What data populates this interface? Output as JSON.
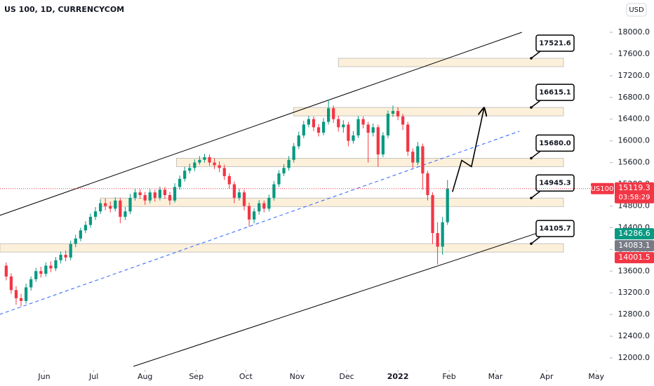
{
  "chart_data": {
    "type": "candlestick",
    "title": "US 100, 1D, CURRENCYCOM",
    "currency": "USD",
    "symbol": "US100",
    "countdown": "03:58:29",
    "up_color": "#089981",
    "down_color": "#f23645",
    "xlim": [
      -26.75,
      340.5
    ],
    "xticks": [
      {
        "value": 0,
        "label": "Jun"
      },
      {
        "value": 30,
        "label": "Jul"
      },
      {
        "value": 61,
        "label": "Aug"
      },
      {
        "value": 92,
        "label": "Sep"
      },
      {
        "value": 122,
        "label": "Oct"
      },
      {
        "value": 153,
        "label": "Nov"
      },
      {
        "value": 183,
        "label": "Dec"
      },
      {
        "value": 214,
        "label": "2022"
      },
      {
        "value": 245,
        "label": "Feb"
      },
      {
        "value": 273,
        "label": "Mar"
      },
      {
        "value": 304,
        "label": "Apr"
      },
      {
        "value": 334,
        "label": "May"
      }
    ],
    "ylim": [
      11806,
      18595
    ],
    "yticks": [
      {
        "value": 12000,
        "label": "12000.0"
      },
      {
        "value": 12400,
        "label": "12400.0"
      },
      {
        "value": 12800,
        "label": "12800.0"
      },
      {
        "value": 13200,
        "label": "13200.0"
      },
      {
        "value": 13600,
        "label": "13600.0"
      },
      {
        "value": 14000,
        "label": "14000.0"
      },
      {
        "value": 14400,
        "label": "14400.0"
      },
      {
        "value": 14800,
        "label": "14800.0"
      },
      {
        "value": 15200,
        "label": "15200.0"
      },
      {
        "value": 15600,
        "label": "15600.0"
      },
      {
        "value": 16000,
        "label": "16000.0"
      },
      {
        "value": 16400,
        "label": "16400.0"
      },
      {
        "value": 16800,
        "label": "16800.0"
      },
      {
        "value": 17200,
        "label": "17200.0"
      },
      {
        "value": 17600,
        "label": "17600.0"
      },
      {
        "value": 18000,
        "label": "18000.0"
      }
    ],
    "x": [
      -23,
      -20,
      -17,
      -14,
      -11,
      -8,
      -5,
      -2,
      1,
      4,
      7,
      10,
      13,
      16,
      19,
      22,
      25,
      28,
      31,
      34,
      37,
      40,
      43,
      46,
      49,
      52,
      55,
      58,
      61,
      64,
      67,
      70,
      73,
      76,
      79,
      82,
      85,
      88,
      91,
      94,
      97,
      100,
      103,
      106,
      109,
      112,
      115,
      118,
      121,
      124,
      127,
      130,
      133,
      136,
      139,
      142,
      145,
      148,
      151,
      154,
      157,
      160,
      163,
      166,
      169,
      172,
      175,
      178,
      181,
      184,
      187,
      190,
      193,
      196,
      199,
      202,
      205,
      208,
      211,
      214,
      217,
      220,
      223,
      226,
      229,
      232,
      235,
      238,
      241,
      244
    ],
    "candles": [
      [
        13700,
        13760,
        13430,
        13500
      ],
      [
        13500,
        13560,
        13180,
        13250
      ],
      [
        13250,
        13320,
        12980,
        13100
      ],
      [
        13100,
        13180,
        12950,
        13050
      ],
      [
        13050,
        13370,
        13000,
        13300
      ],
      [
        13300,
        13500,
        13240,
        13450
      ],
      [
        13450,
        13660,
        13400,
        13600
      ],
      [
        13600,
        13680,
        13480,
        13550
      ],
      [
        13550,
        13760,
        13500,
        13700
      ],
      [
        13700,
        13780,
        13580,
        13650
      ],
      [
        13650,
        13860,
        13600,
        13800
      ],
      [
        13800,
        13960,
        13740,
        13900
      ],
      [
        13900,
        13980,
        13780,
        13850
      ],
      [
        13850,
        14160,
        13800,
        14100
      ],
      [
        14100,
        14270,
        14040,
        14200
      ],
      [
        14200,
        14400,
        14150,
        14350
      ],
      [
        14350,
        14520,
        14300,
        14450
      ],
      [
        14450,
        14660,
        14400,
        14600
      ],
      [
        14600,
        14780,
        14540,
        14700
      ],
      [
        14700,
        14920,
        14650,
        14850
      ],
      [
        14850,
        14940,
        14720,
        14800
      ],
      [
        14800,
        14880,
        14680,
        14750
      ],
      [
        14750,
        14960,
        14700,
        14900
      ],
      [
        14900,
        14950,
        14480,
        14600
      ],
      [
        14600,
        14780,
        14540,
        14700
      ],
      [
        14700,
        15020,
        14650,
        14950
      ],
      [
        14950,
        15120,
        14900,
        15050
      ],
      [
        15050,
        15110,
        14930,
        15000
      ],
      [
        15000,
        15060,
        14820,
        14900
      ],
      [
        14900,
        15110,
        14850,
        15050
      ],
      [
        15050,
        15100,
        14880,
        14950
      ],
      [
        14950,
        15160,
        14900,
        15100
      ],
      [
        15100,
        15150,
        14930,
        15000
      ],
      [
        15000,
        15060,
        14820,
        14900
      ],
      [
        14900,
        15220,
        14860,
        15150
      ],
      [
        15150,
        15360,
        15100,
        15300
      ],
      [
        15300,
        15520,
        15250,
        15450
      ],
      [
        15450,
        15580,
        15400,
        15500
      ],
      [
        15500,
        15660,
        15440,
        15600
      ],
      [
        15600,
        15720,
        15560,
        15650
      ],
      [
        15650,
        15760,
        15600,
        15700
      ],
      [
        15700,
        15750,
        15540,
        15600
      ],
      [
        15600,
        15680,
        15480,
        15550
      ],
      [
        15550,
        15620,
        15420,
        15500
      ],
      [
        15500,
        15560,
        15280,
        15350
      ],
      [
        15350,
        15400,
        15120,
        15200
      ],
      [
        15200,
        15250,
        14850,
        14950
      ],
      [
        14950,
        15120,
        14900,
        15050
      ],
      [
        15050,
        15100,
        14720,
        14800
      ],
      [
        14800,
        14860,
        14420,
        14550
      ],
      [
        14550,
        14760,
        14480,
        14700
      ],
      [
        14700,
        14910,
        14640,
        14850
      ],
      [
        14850,
        14900,
        14680,
        14750
      ],
      [
        14750,
        15010,
        14700,
        14950
      ],
      [
        14950,
        15260,
        14900,
        15200
      ],
      [
        15200,
        15460,
        15150,
        15400
      ],
      [
        15400,
        15570,
        15350,
        15500
      ],
      [
        15500,
        15720,
        15450,
        15650
      ],
      [
        15650,
        15960,
        15600,
        15900
      ],
      [
        15900,
        16170,
        15850,
        16100
      ],
      [
        16100,
        16370,
        16050,
        16300
      ],
      [
        16300,
        16460,
        16250,
        16400
      ],
      [
        16400,
        16450,
        16180,
        16250
      ],
      [
        16250,
        16310,
        16080,
        16150
      ],
      [
        16150,
        16420,
        16100,
        16350
      ],
      [
        16350,
        16760,
        16300,
        16600
      ],
      [
        16600,
        16650,
        16330,
        16400
      ],
      [
        16400,
        16460,
        16170,
        16250
      ],
      [
        16250,
        16380,
        16150,
        16300
      ],
      [
        16300,
        16350,
        15900,
        16000
      ],
      [
        16000,
        16180,
        15950,
        16100
      ],
      [
        16100,
        16460,
        16050,
        16400
      ],
      [
        16400,
        16450,
        16230,
        16300
      ],
      [
        16300,
        16350,
        15600,
        16150
      ],
      [
        16150,
        16320,
        16080,
        16250
      ],
      [
        16250,
        16300,
        15520,
        15750
      ],
      [
        15750,
        16160,
        15700,
        16100
      ],
      [
        16100,
        16560,
        16050,
        16500
      ],
      [
        16500,
        16650,
        16440,
        16550
      ],
      [
        16550,
        16620,
        16380,
        16450
      ],
      [
        16450,
        16500,
        16200,
        16300
      ],
      [
        16300,
        16350,
        15720,
        15800
      ],
      [
        15800,
        15860,
        15500,
        15600
      ],
      [
        15600,
        15980,
        15550,
        15900
      ],
      [
        15900,
        15950,
        15100,
        15400
      ],
      [
        15400,
        15450,
        14900,
        15000
      ],
      [
        15000,
        15050,
        14100,
        14300
      ],
      [
        14300,
        14500,
        13720,
        14050
      ],
      [
        14050,
        14600,
        13900,
        14500
      ],
      [
        14500,
        15280,
        14450,
        15119.3
      ]
    ],
    "price_tags": [
      {
        "value": 14286.6,
        "color": "#089981"
      },
      {
        "value": 14083.1,
        "color": "#787b86"
      },
      {
        "value": 14001.5,
        "color": "#f23645"
      }
    ],
    "zones": [
      {
        "level": 17521.6,
        "start": 178
      },
      {
        "level": 16615.1,
        "start": 151
      },
      {
        "level": {
          "value": 15680,
          "label": "15680.0"
        },
        "start": 80
      },
      {
        "level": 14945.3,
        "start": 34
      },
      {
        "level": 14105.7,
        "start": -27
      }
    ],
    "trendlines": [
      {
        "x": [
          -27,
          289
        ],
        "y": [
          14625,
          18000
        ],
        "color": "#000000",
        "dashed": false
      },
      {
        "x": [
          54,
          301
        ],
        "y": [
          11845,
          14327
        ],
        "color": "#000000",
        "dashed": false
      },
      {
        "x": [
          -27,
          287.5
        ],
        "y": [
          12801,
          16177
        ],
        "color": "#2962ff",
        "dashed": true
      }
    ],
    "arrow": {
      "x": [
        247,
        252.6,
        258.5,
        266
      ],
      "y": [
        15060,
        15640,
        15525,
        16590
      ]
    }
  }
}
